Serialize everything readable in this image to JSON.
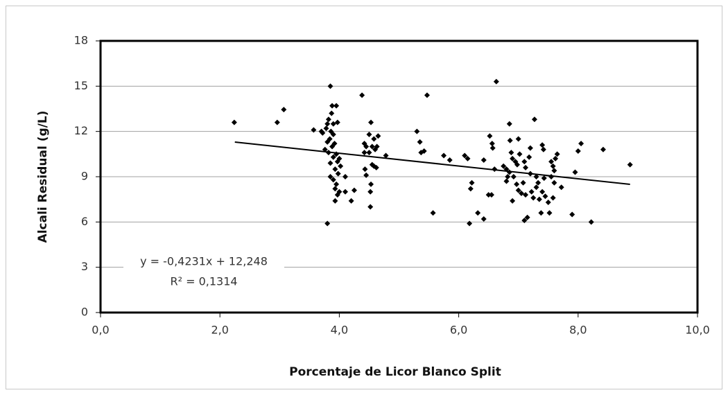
{
  "chart_data": {
    "type": "scatter",
    "x_label": "Porcentaje de Licor Blanco Split",
    "y_label": "Alcali Residual (g/L)",
    "color": "#000000",
    "xlim": [
      0,
      10
    ],
    "ylim": [
      0,
      18
    ],
    "xticks": [
      {
        "value": 0,
        "label": "0,0"
      },
      {
        "value": 2,
        "label": "2,0"
      },
      {
        "value": 4,
        "label": "4,0"
      },
      {
        "value": 6,
        "label": "6,0"
      },
      {
        "value": 8,
        "label": "8,0"
      },
      {
        "value": 10,
        "label": "10,0"
      }
    ],
    "yticks": [
      0,
      3,
      6,
      9,
      12,
      15,
      18
    ],
    "grid": true,
    "x": [
      2.24,
      2.96,
      3.07,
      3.57,
      3.85,
      3.88,
      3.95,
      3.87,
      3.82,
      3.9,
      3.97,
      3.78,
      3.86,
      3.9,
      3.84,
      3.8,
      3.92,
      3.88,
      3.76,
      3.82,
      3.95,
      3.9,
      4.0,
      3.97,
      3.85,
      4.02,
      3.93,
      3.98,
      3.85,
      3.9,
      3.95,
      3.93,
      4.0,
      3.97,
      3.93,
      3.8,
      4.1,
      4.1,
      4.2,
      4.25,
      3.7,
      3.8,
      3.72,
      4.38,
      4.42,
      4.45,
      4.42,
      4.43,
      4.45,
      4.53,
      4.5,
      4.58,
      4.55,
      4.6,
      4.5,
      4.55,
      4.62,
      4.58,
      4.53,
      4.52,
      4.52,
      4.65,
      4.78,
      4.63,
      5.3,
      5.35,
      5.37,
      5.42,
      5.47,
      5.57,
      5.75,
      5.85,
      6.1,
      6.15,
      6.22,
      6.2,
      6.18,
      6.32,
      6.42,
      6.42,
      6.5,
      6.55,
      6.52,
      6.56,
      6.57,
      6.6,
      6.63,
      6.75,
      6.8,
      6.85,
      6.82,
      6.8,
      6.85,
      6.86,
      6.88,
      6.9,
      6.95,
      6.98,
      7.0,
      7.02,
      6.92,
      6.97,
      7.0,
      6.9,
      7.05,
      7.1,
      7.12,
      7.08,
      7.12,
      7.1,
      7.15,
      7.2,
      7.18,
      7.2,
      7.22,
      7.25,
      7.27,
      7.3,
      7.33,
      7.3,
      7.35,
      7.38,
      7.4,
      7.42,
      7.43,
      7.4,
      7.45,
      7.5,
      7.52,
      7.55,
      7.58,
      7.6,
      7.55,
      7.6,
      7.58,
      7.65,
      7.62,
      7.72,
      7.9,
      7.95,
      8.0,
      8.05,
      8.22,
      8.42,
      8.87
    ],
    "values": [
      12.6,
      12.6,
      13.45,
      12.1,
      15.0,
      13.7,
      13.7,
      13.2,
      12.8,
      12.5,
      12.6,
      12.2,
      12.0,
      11.8,
      11.5,
      11.3,
      11.2,
      11.0,
      10.8,
      10.6,
      10.5,
      10.3,
      10.2,
      10.0,
      9.9,
      9.7,
      9.5,
      9.2,
      9.0,
      8.8,
      8.5,
      8.2,
      8.0,
      7.8,
      7.4,
      5.9,
      9.0,
      8.0,
      7.4,
      8.1,
      12.0,
      12.5,
      11.9,
      14.4,
      11.2,
      11.0,
      10.6,
      9.5,
      9.1,
      12.6,
      11.8,
      11.5,
      11.0,
      10.8,
      10.6,
      9.8,
      9.6,
      9.7,
      8.5,
      8.0,
      7.0,
      11.7,
      10.4,
      11.0,
      12.0,
      11.3,
      10.6,
      10.7,
      14.4,
      6.6,
      10.4,
      10.1,
      10.4,
      10.2,
      8.6,
      8.2,
      5.9,
      6.6,
      6.2,
      10.1,
      7.8,
      7.8,
      11.7,
      11.2,
      10.9,
      9.5,
      15.3,
      9.7,
      9.5,
      9.3,
      9.0,
      8.7,
      12.5,
      11.4,
      10.6,
      10.2,
      10.0,
      9.8,
      11.5,
      10.5,
      9.0,
      8.5,
      8.1,
      7.4,
      7.9,
      10.0,
      9.6,
      8.6,
      7.8,
      6.1,
      6.3,
      10.9,
      10.3,
      9.2,
      8.0,
      7.6,
      12.8,
      9.0,
      8.6,
      8.3,
      7.5,
      6.6,
      11.1,
      10.8,
      8.9,
      8.0,
      7.7,
      7.3,
      6.6,
      10.0,
      9.7,
      9.4,
      9.0,
      8.6,
      7.6,
      10.5,
      10.2,
      8.3,
      6.5,
      9.3,
      10.7,
      11.2,
      6.0,
      10.8,
      9.8
    ],
    "trendline": {
      "x": [
        2.25,
        8.87
      ],
      "y": [
        11.296,
        8.495
      ],
      "color": "#000000",
      "equation": "y = -0,4231x + 12,248",
      "r2": "R² = 0,1314"
    }
  }
}
